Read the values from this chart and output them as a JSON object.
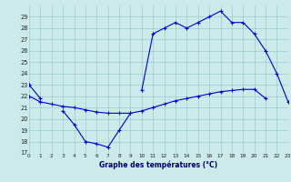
{
  "bg_color": "#cceaea",
  "grid_color": "#99cccc",
  "line_color": "#0000cc",
  "xlabel": "Graphe des températures (°C)",
  "ylim": [
    17,
    30
  ],
  "xlim": [
    0,
    23
  ],
  "yticks": [
    17,
    18,
    19,
    20,
    21,
    22,
    23,
    24,
    25,
    26,
    27,
    28,
    29
  ],
  "hours": [
    0,
    1,
    2,
    3,
    4,
    5,
    6,
    7,
    8,
    9,
    10,
    11,
    12,
    13,
    14,
    15,
    16,
    17,
    18,
    19,
    20,
    21,
    22,
    23
  ],
  "line_top": [
    23.0,
    null,
    null,
    null,
    null,
    null,
    null,
    null,
    null,
    null,
    22.5,
    27.5,
    28.0,
    28.5,
    28.0,
    28.5,
    29.0,
    29.5,
    28.5,
    28.5,
    27.5,
    26.0,
    24.0,
    21.5
  ],
  "line_dip": [
    23.0,
    21.8,
    null,
    20.7,
    19.5,
    18.0,
    17.8,
    17.5,
    19.0,
    20.5,
    null,
    null,
    null,
    null,
    null,
    null,
    null,
    null,
    null,
    null,
    null,
    null,
    null,
    null
  ],
  "line_flat": [
    22.0,
    21.5,
    21.3,
    21.1,
    21.0,
    20.8,
    20.6,
    20.5,
    20.5,
    20.5,
    20.7,
    21.0,
    21.3,
    21.6,
    21.8,
    22.0,
    22.2,
    22.4,
    22.5,
    22.6,
    22.6,
    21.8,
    null,
    null
  ]
}
